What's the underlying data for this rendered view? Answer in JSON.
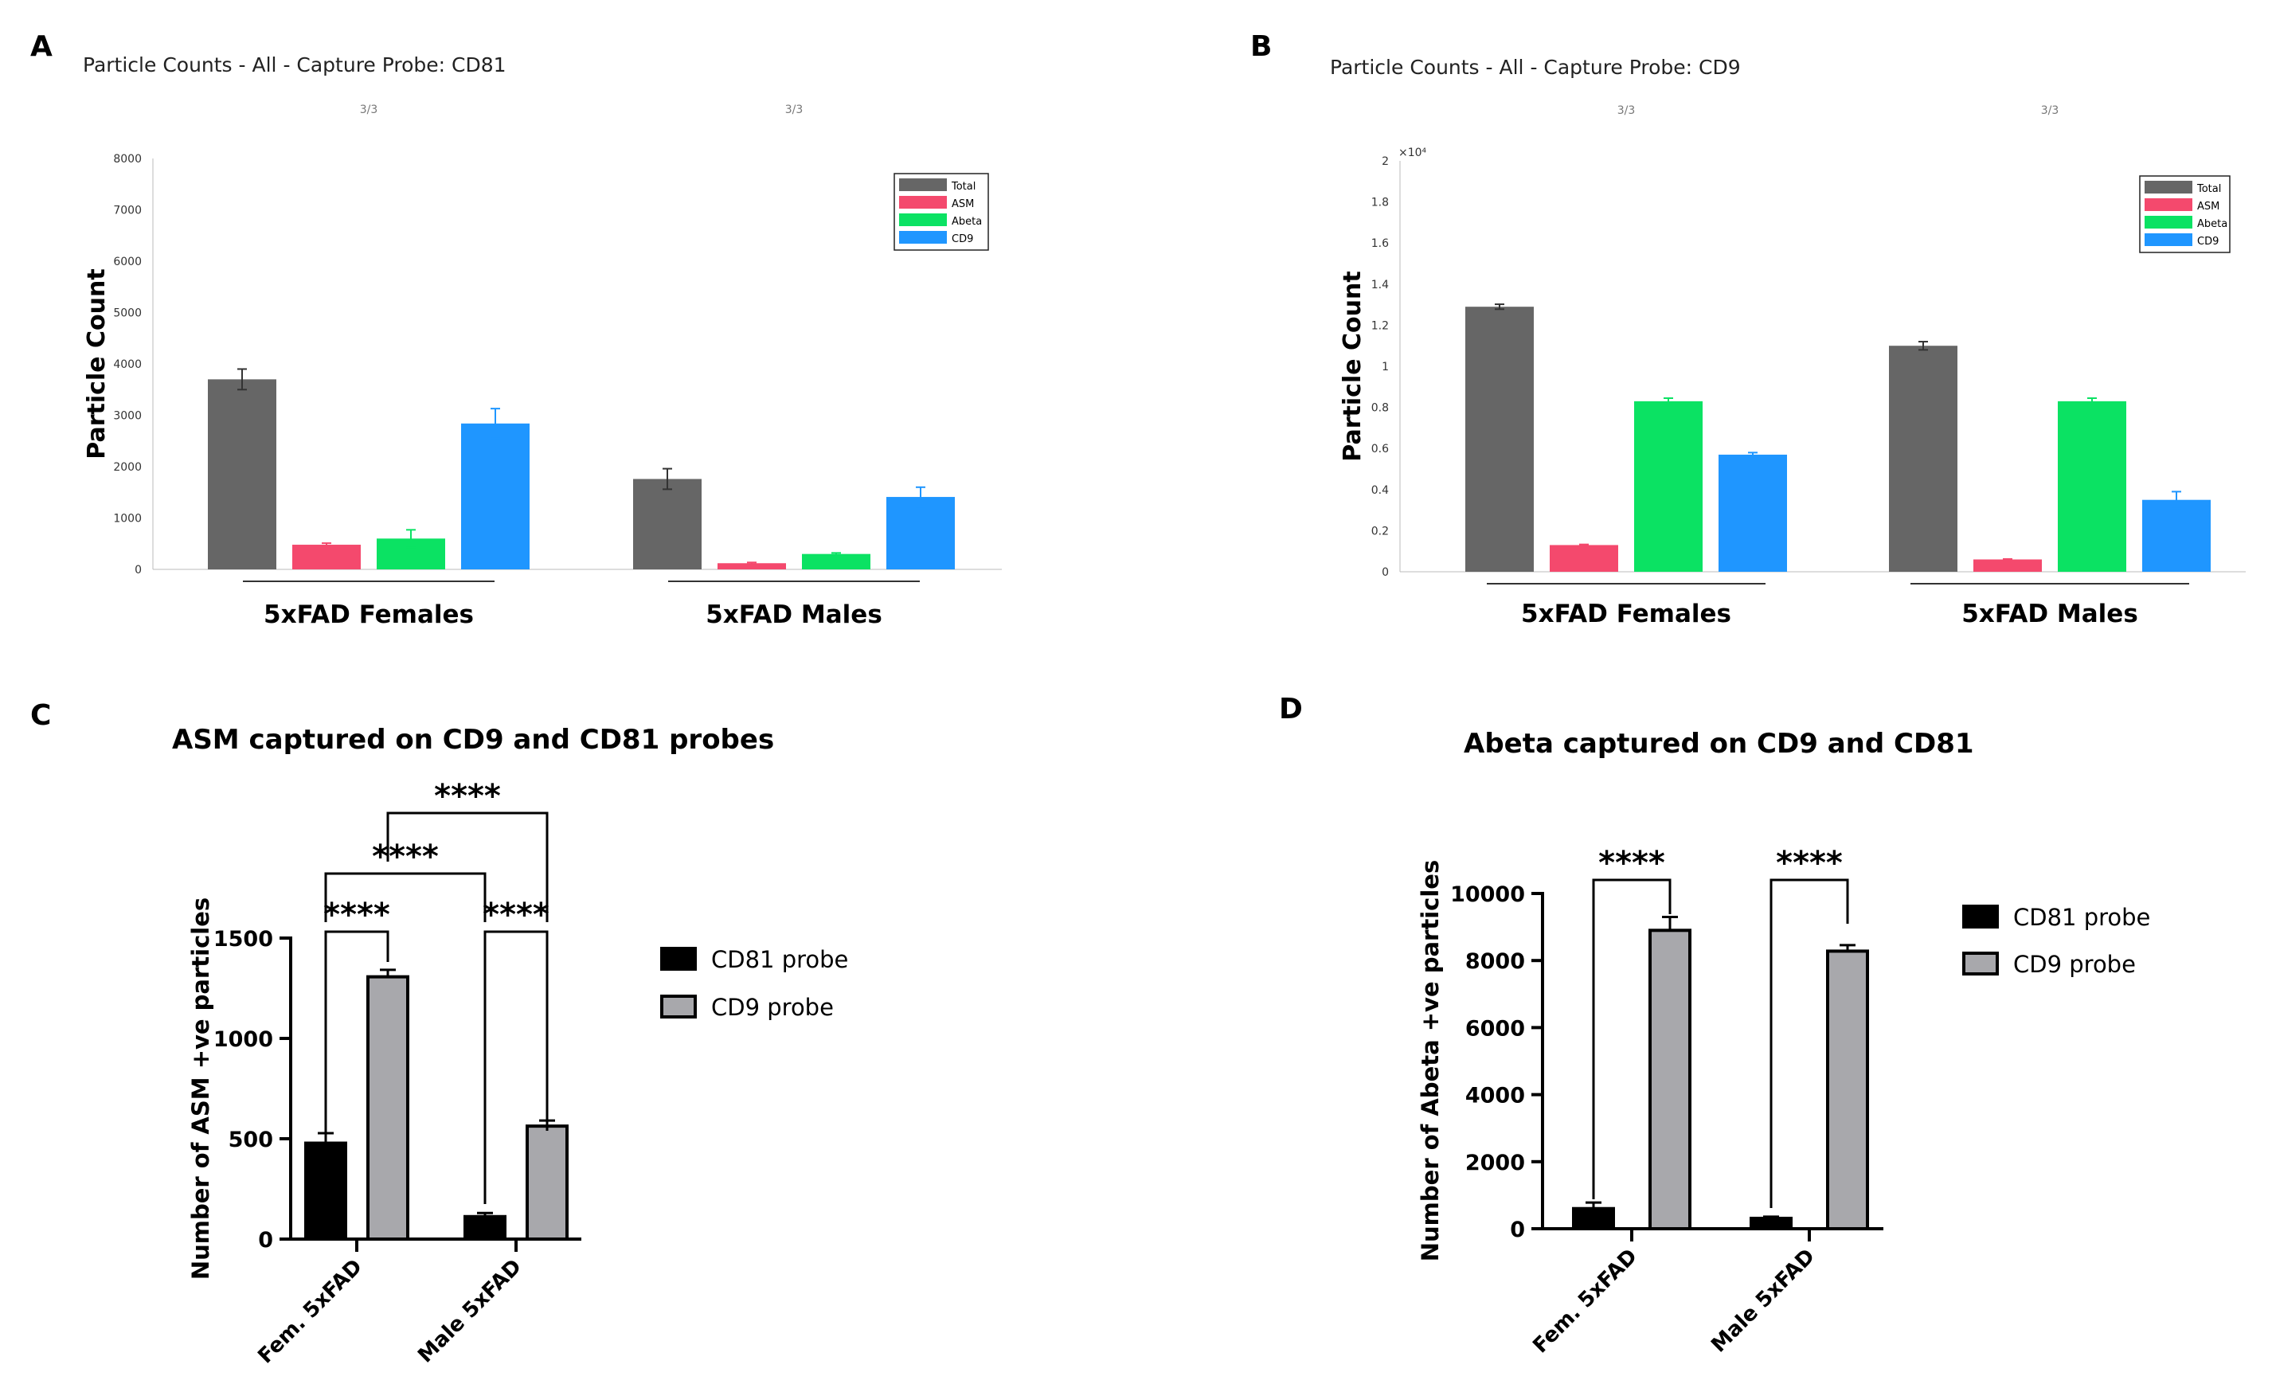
{
  "chart_data": [
    {
      "id": "A",
      "type": "bar",
      "title": "Particle Counts - All - Capture Probe: CD81",
      "subtitle_marks": [
        "3/3",
        "3/3"
      ],
      "ylabel": "Particle Count",
      "ylim": [
        0,
        8000
      ],
      "yticks": [
        0,
        1000,
        2000,
        3000,
        4000,
        5000,
        6000,
        7000,
        8000
      ],
      "ytick_labels": [
        "0",
        "1000",
        "2000",
        "3000",
        "4000",
        "5000",
        "6000",
        "7000",
        "8000"
      ],
      "y_multiplier": "",
      "categories": [
        "5xFAD Females",
        "5xFAD Males"
      ],
      "series": [
        {
          "name": "Total",
          "color": "#666666",
          "values": [
            3700,
            1760
          ],
          "errors": [
            200,
            200
          ]
        },
        {
          "name": "ASM",
          "color": "#f4496d",
          "values": [
            480,
            120
          ],
          "errors": [
            30,
            15
          ]
        },
        {
          "name": "Abeta",
          "color": "#0be263",
          "values": [
            600,
            300
          ],
          "errors": [
            170,
            20
          ]
        },
        {
          "name": "CD9",
          "color": "#1f96ff",
          "values": [
            2840,
            1410
          ],
          "errors": [
            290,
            190
          ]
        }
      ],
      "legend": "top-right"
    },
    {
      "id": "B",
      "type": "bar",
      "title": "Particle Counts - All - Capture Probe: CD9",
      "subtitle_marks": [
        "3/3",
        "3/3"
      ],
      "ylabel": "Particle Count",
      "ylim": [
        0,
        2
      ],
      "yticks": [
        0,
        0.2,
        0.4,
        0.6,
        0.8,
        1,
        1.2,
        1.4,
        1.6,
        1.8,
        2
      ],
      "ytick_labels": [
        "0",
        "0.2",
        "0.4",
        "0.6",
        "0.8",
        "1",
        "1.2",
        "1.4",
        "1.6",
        "1.8",
        "2"
      ],
      "y_multiplier": "×10⁴",
      "categories": [
        "5xFAD Females",
        "5xFAD Males"
      ],
      "series": [
        {
          "name": "Total",
          "color": "#666666",
          "values": [
            1.29,
            1.1
          ],
          "errors": [
            0.012,
            0.02
          ]
        },
        {
          "name": "ASM",
          "color": "#f4496d",
          "values": [
            0.13,
            0.06
          ],
          "errors": [
            0.003,
            0.002
          ]
        },
        {
          "name": "Abeta",
          "color": "#0be263",
          "values": [
            0.83,
            0.83
          ],
          "errors": [
            0.015,
            0.015
          ]
        },
        {
          "name": "CD9",
          "color": "#1f96ff",
          "values": [
            0.57,
            0.35
          ],
          "errors": [
            0.01,
            0.04
          ]
        }
      ],
      "legend": "top-right"
    },
    {
      "id": "C",
      "type": "bar",
      "title": "ASM captured on CD9 and CD81 probes",
      "ylabel": "Number of ASM +ve particles",
      "ylim": [
        0,
        1500
      ],
      "yticks": [
        0,
        500,
        1000,
        1500
      ],
      "ytick_labels": [
        "0",
        "500",
        "1000",
        "1500"
      ],
      "categories": [
        "Fem. 5xFAD",
        "Male 5xFAD"
      ],
      "series": [
        {
          "name": "CD81 probe",
          "color": "#000000",
          "values": [
            478,
            112
          ],
          "errors": [
            50,
            18
          ]
        },
        {
          "name": "CD9 probe",
          "color": "#a8a8ac",
          "values": [
            1307,
            563
          ],
          "errors": [
            35,
            28
          ]
        }
      ],
      "significance": [
        {
          "label": "****",
          "from": "Fem. 5xFAD CD81 probe",
          "to": "Fem. 5xFAD CD9 probe"
        },
        {
          "label": "****",
          "from": "Male 5xFAD CD81 probe",
          "to": "Male 5xFAD CD9 probe"
        },
        {
          "label": "****",
          "from": "Fem. 5xFAD CD81 probe",
          "to": "Male 5xFAD CD81 probe"
        },
        {
          "label": "****",
          "from": "Fem. 5xFAD CD9 probe",
          "to": "Male 5xFAD CD9 probe"
        }
      ],
      "legend": "right"
    },
    {
      "id": "D",
      "type": "bar",
      "title": "Abeta  captured on CD9 and CD81",
      "ylabel": "Number of Abeta +ve particles",
      "ylim": [
        0,
        10000
      ],
      "yticks": [
        0,
        2000,
        4000,
        6000,
        8000,
        10000
      ],
      "ytick_labels": [
        "0",
        "2000",
        "4000",
        "6000",
        "8000",
        "10000"
      ],
      "categories": [
        "Fem. 5xFAD",
        "Male 5xFAD"
      ],
      "series": [
        {
          "name": "CD81 probe",
          "color": "#000000",
          "values": [
            600,
            310
          ],
          "errors": [
            180,
            50
          ]
        },
        {
          "name": "CD9 probe",
          "color": "#a8a8ac",
          "values": [
            8900,
            8280
          ],
          "errors": [
            400,
            180
          ]
        }
      ],
      "significance": [
        {
          "label": "****",
          "from": "Fem. 5xFAD CD81 probe",
          "to": "Fem. 5xFAD CD9 probe"
        },
        {
          "label": "****",
          "from": "Male 5xFAD CD81 probe",
          "to": "Male 5xFAD CD9 probe"
        }
      ],
      "legend": "right"
    }
  ]
}
